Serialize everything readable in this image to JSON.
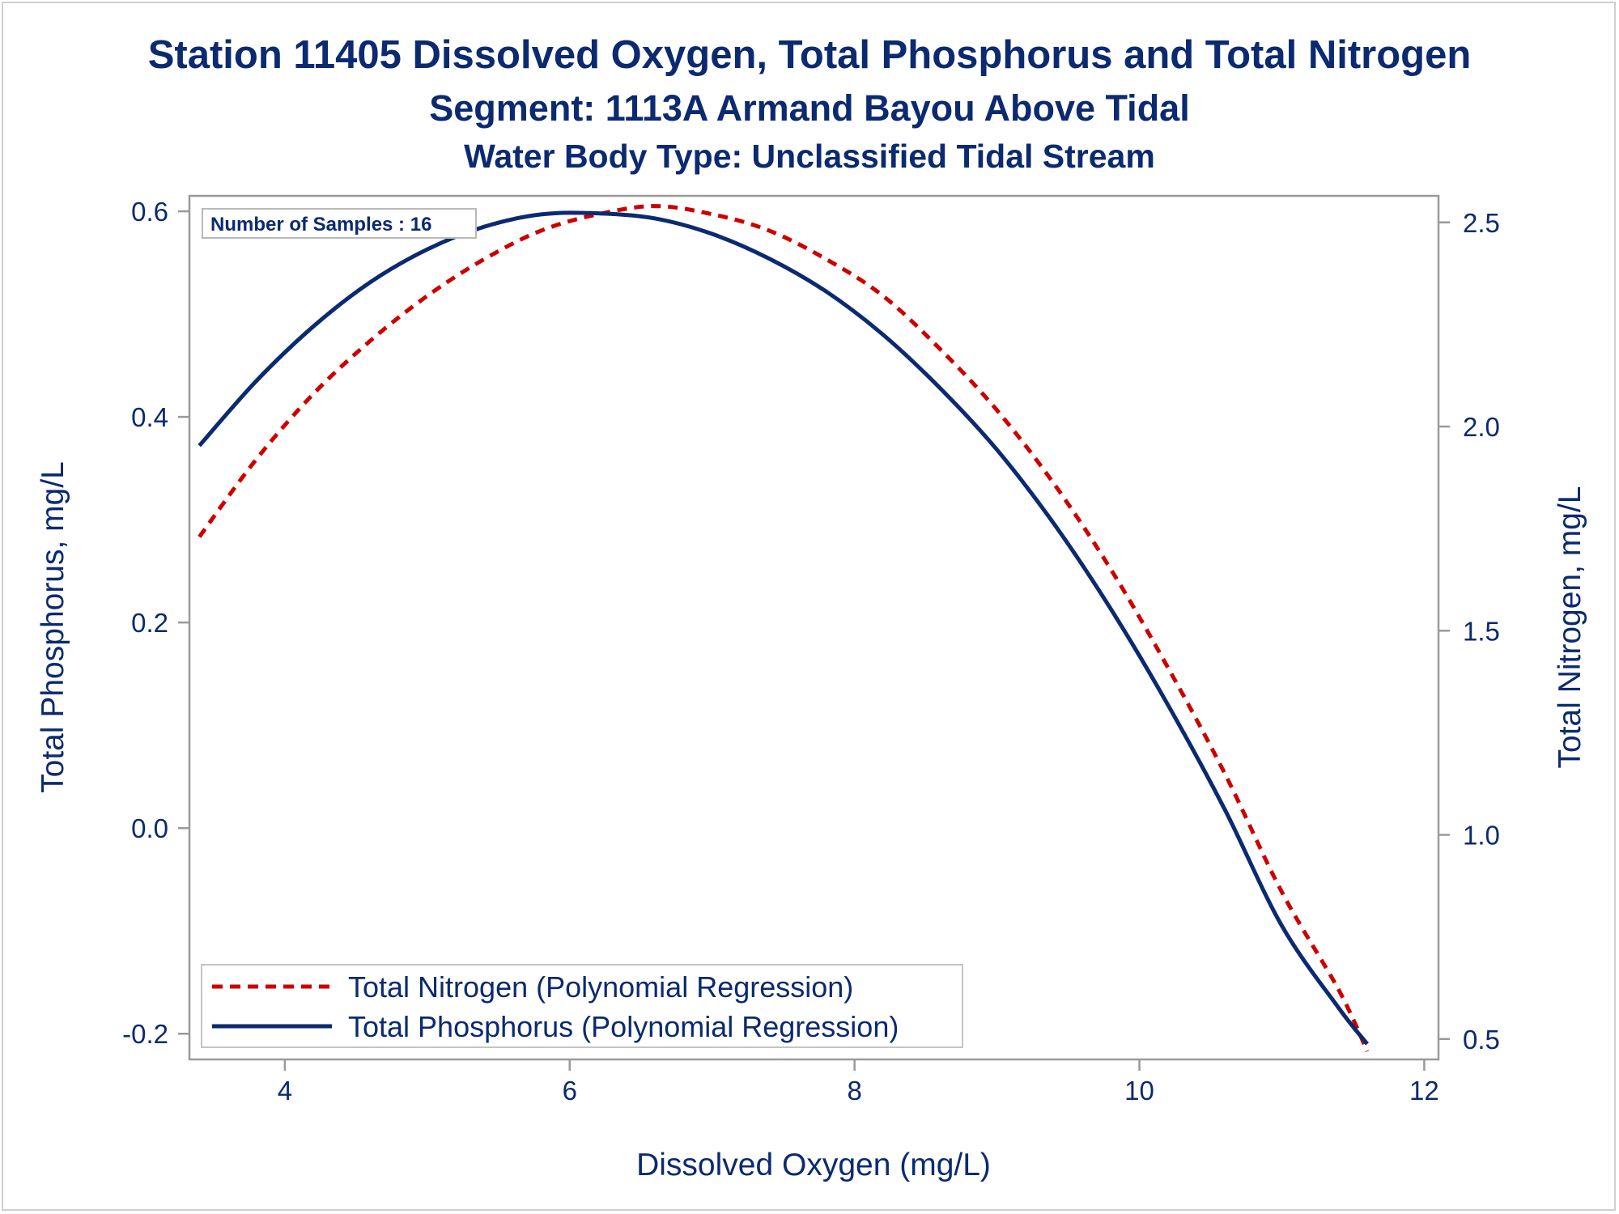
{
  "titles": {
    "line1": "Station 11405  Dissolved Oxygen, Total Phosphorus and Total Nitrogen",
    "line2": "Segment: 1113A  Armand Bayou Above Tidal",
    "line3": "Water Body Type: Unclassified Tidal Stream"
  },
  "annotation": "Number of Samples : 16",
  "colors": {
    "nitrogen": "#cc0000",
    "phosphorus": "#0b2a6f",
    "text": "#0b2a6f",
    "axis": "#9a9a9a"
  },
  "chart_data": {
    "type": "line",
    "xlabel": "Dissolved Oxygen (mg/L)",
    "ylabel": "Total Phosphorus, mg/L",
    "y2label": "Total Nitrogen, mg/L",
    "xlim": [
      3.33,
      12.1
    ],
    "ylim": [
      -0.225,
      0.615
    ],
    "y2lim": [
      0.45,
      2.565
    ],
    "xticks": [
      4,
      6,
      8,
      10,
      12
    ],
    "xtick_labels": [
      "4",
      "6",
      "8",
      "10",
      "12"
    ],
    "yticks": [
      -0.2,
      0.0,
      0.2,
      0.4,
      0.6
    ],
    "ytick_labels": [
      "-0.2",
      "0.0",
      "0.2",
      "0.4",
      "0.6"
    ],
    "y2ticks": [
      0.5,
      1.0,
      1.5,
      2.0,
      2.5
    ],
    "y2tick_labels": [
      "0.5",
      "1.0",
      "1.5",
      "2.0",
      "2.5"
    ],
    "grid": false,
    "legend_position": "bottom-left",
    "series": [
      {
        "name": "Total Nitrogen (Polynomial Regression)",
        "axis": "right",
        "style": "dashed",
        "x": [
          3.4,
          3.8,
          4.2,
          4.6,
          5.0,
          5.4,
          5.8,
          6.2,
          6.6,
          7.0,
          7.4,
          7.8,
          8.2,
          8.6,
          9.0,
          9.4,
          9.8,
          10.2,
          10.6,
          11.0,
          11.4,
          11.6
        ],
        "y": [
          1.73,
          1.92,
          2.08,
          2.21,
          2.32,
          2.41,
          2.48,
          2.52,
          2.54,
          2.52,
          2.48,
          2.41,
          2.32,
          2.19,
          2.04,
          1.86,
          1.65,
          1.41,
          1.15,
          0.86,
          0.62,
          0.47
        ]
      },
      {
        "name": "Total Phosphorus (Polynomial Regression)",
        "axis": "left",
        "style": "solid",
        "x": [
          3.4,
          3.8,
          4.2,
          4.6,
          5.0,
          5.4,
          5.8,
          6.2,
          6.6,
          7.0,
          7.4,
          7.8,
          8.2,
          8.6,
          9.0,
          9.4,
          9.8,
          10.2,
          10.6,
          11.0,
          11.4,
          11.6
        ],
        "y": [
          0.372,
          0.435,
          0.488,
          0.531,
          0.563,
          0.585,
          0.597,
          0.598,
          0.593,
          0.578,
          0.554,
          0.522,
          0.48,
          0.428,
          0.368,
          0.296,
          0.213,
          0.12,
          0.018,
          -0.095,
          -0.175,
          -0.21
        ]
      }
    ]
  }
}
